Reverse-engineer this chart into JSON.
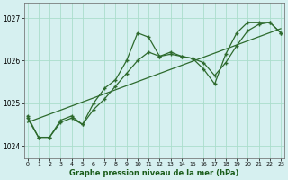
{
  "hours": [
    0,
    1,
    2,
    3,
    4,
    5,
    6,
    7,
    8,
    9,
    10,
    11,
    12,
    13,
    14,
    15,
    16,
    17,
    18,
    19,
    20,
    21,
    22,
    23
  ],
  "series1": [
    1024.7,
    1024.2,
    1024.2,
    1024.6,
    1024.7,
    1024.5,
    1025.0,
    1025.35,
    1025.55,
    1026.0,
    1026.65,
    1026.55,
    1026.1,
    1026.2,
    1026.1,
    1026.05,
    1025.8,
    1025.45,
    1026.15,
    1026.65,
    1026.9,
    1026.9,
    1026.9,
    1026.65
  ],
  "series2": [
    1024.65,
    1024.2,
    1024.2,
    1024.55,
    1024.65,
    1024.5,
    1024.85,
    1025.1,
    1025.4,
    1025.7,
    1026.0,
    1026.2,
    1026.1,
    1026.15,
    1026.1,
    1026.05,
    1025.95,
    1025.65,
    1025.95,
    1026.35,
    1026.7,
    1026.85,
    1026.9,
    1026.65
  ],
  "trend_x": [
    0,
    23
  ],
  "trend_y": [
    1024.55,
    1026.75
  ],
  "line_color": "#2d6a2d",
  "bg_color": "#d6f0f0",
  "grid_color": "#aaddcc",
  "ylabel_ticks": [
    1024,
    1025,
    1026,
    1027
  ],
  "xlabel_ticks": [
    0,
    1,
    2,
    3,
    4,
    5,
    6,
    7,
    8,
    9,
    10,
    11,
    12,
    13,
    14,
    15,
    16,
    17,
    18,
    19,
    20,
    21,
    22,
    23
  ],
  "ylim": [
    1023.7,
    1027.35
  ],
  "xlim": [
    -0.3,
    23.3
  ],
  "xlabel": "Graphe pression niveau de la mer (hPa)"
}
